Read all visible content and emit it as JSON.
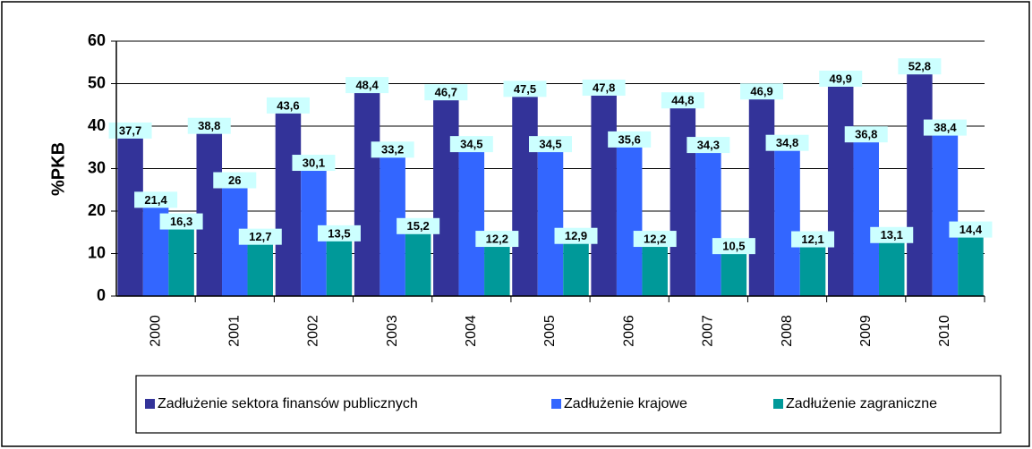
{
  "chart_data": {
    "type": "bar",
    "ylabel": "%PKB",
    "categories": [
      "2000",
      "2001",
      "2002",
      "2003",
      "2004",
      "2005",
      "2006",
      "2007",
      "2008",
      "2009",
      "2010"
    ],
    "series": [
      {
        "name": "Zadłużenie sektora finansów publicznych",
        "color": "#333399",
        "values": [
          37.7,
          38.8,
          43.6,
          48.4,
          46.7,
          47.5,
          47.8,
          44.8,
          46.9,
          49.9,
          52.8
        ],
        "value_labels": [
          "37,7",
          "38,8",
          "43,6",
          "48,4",
          "46,7",
          "47,5",
          "47,8",
          "44,8",
          "46,9",
          "49,9",
          "52,8"
        ]
      },
      {
        "name": "Zadłużenie krajowe",
        "color": "#3366ff",
        "values": [
          21.4,
          26,
          30.1,
          33.2,
          34.5,
          34.5,
          35.6,
          34.3,
          34.8,
          36.8,
          38.4
        ],
        "value_labels": [
          "21,4",
          "26",
          "30,1",
          "33,2",
          "34,5",
          "34,5",
          "35,6",
          "34,3",
          "34,8",
          "36,8",
          "38,4"
        ]
      },
      {
        "name": "Zadłużenie zagraniczne",
        "color": "#009999",
        "values": [
          16.3,
          12.7,
          13.5,
          15.2,
          12.2,
          12.9,
          12.2,
          10.5,
          12.1,
          13.1,
          14.4
        ],
        "value_labels": [
          "16,3",
          "12,7",
          "13,5",
          "15,2",
          "12,2",
          "12,9",
          "12,2",
          "10,5",
          "12,1",
          "13,1",
          "14,4"
        ]
      }
    ],
    "ylim": [
      0,
      60
    ],
    "yticks": [
      0,
      10,
      20,
      30,
      40,
      50,
      60
    ],
    "grid": true,
    "legend": "bottom"
  }
}
